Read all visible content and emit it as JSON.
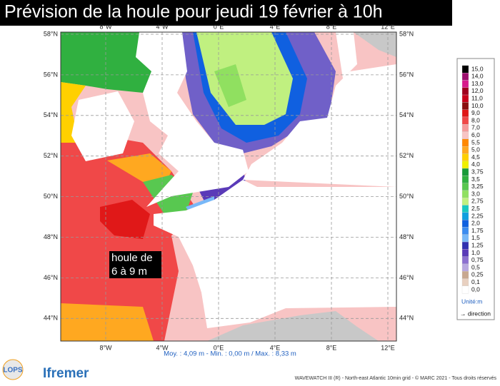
{
  "title": "Prévision de la houle pour jeudi 19 février à 10h",
  "map": {
    "lat_labels": [
      "58°N",
      "56°N",
      "54°N",
      "52°N",
      "50°N",
      "48°N",
      "46°N",
      "44°N"
    ],
    "lon_labels": [
      "8°W",
      "4°W",
      "0°E",
      "4°E",
      "8°E",
      "12°E"
    ],
    "annotation": [
      "houle de",
      "6 à 9 m"
    ]
  },
  "legend": {
    "items": [
      {
        "label": "15,0",
        "color": "#000000"
      },
      {
        "label": "14,0",
        "color": "#9c0f6e"
      },
      {
        "label": "13,0",
        "color": "#d81b8c"
      },
      {
        "label": "12,0",
        "color": "#a0001e"
      },
      {
        "label": "11,0",
        "color": "#c8001a"
      },
      {
        "label": "10,0",
        "color": "#8a1010"
      },
      {
        "label": "9,0",
        "color": "#e01818"
      },
      {
        "label": "8,0",
        "color": "#f04848"
      },
      {
        "label": "7,0",
        "color": "#f59a9a"
      },
      {
        "label": "6,0",
        "color": "#f8c4c4"
      },
      {
        "label": "5,5",
        "color": "#ff8800"
      },
      {
        "label": "5,0",
        "color": "#ffa820"
      },
      {
        "label": "4,5",
        "color": "#ffd000"
      },
      {
        "label": "4,0",
        "color": "#f0f000"
      },
      {
        "label": "3,75",
        "color": "#1a9a3a"
      },
      {
        "label": "3,5",
        "color": "#30b040"
      },
      {
        "label": "3,25",
        "color": "#58c850"
      },
      {
        "label": "3,0",
        "color": "#90e060"
      },
      {
        "label": "2,75",
        "color": "#c0f080"
      },
      {
        "label": "2,5",
        "color": "#18c8c0"
      },
      {
        "label": "2,25",
        "color": "#10a0e0"
      },
      {
        "label": "2,0",
        "color": "#1060e0"
      },
      {
        "label": "1,75",
        "color": "#3c8cf0"
      },
      {
        "label": "1,5",
        "color": "#78b8f8"
      },
      {
        "label": "1,25",
        "color": "#3030b0"
      },
      {
        "label": "1,0",
        "color": "#5a3ab8"
      },
      {
        "label": "0,75",
        "color": "#8c70d0"
      },
      {
        "label": "0,5",
        "color": "#b8a8e0"
      },
      {
        "label": "0,25",
        "color": "#c8a890"
      },
      {
        "label": "0,1",
        "color": "#e8d0c0"
      },
      {
        "label": "0,0",
        "color": "#ffffff"
      }
    ],
    "unit": "Unité:m",
    "direction": "→ direction"
  },
  "stats": "Moy. : 4,09 m  -  Min. : 0,00 m / Max. : 8,33 m",
  "footer": {
    "credits": "WAVEWATCH III (R) - North-east Atlantic 10min grid - © MARC 2021 - Tous droits réservés",
    "logos": [
      "LOPS",
      "Ifremer"
    ]
  }
}
